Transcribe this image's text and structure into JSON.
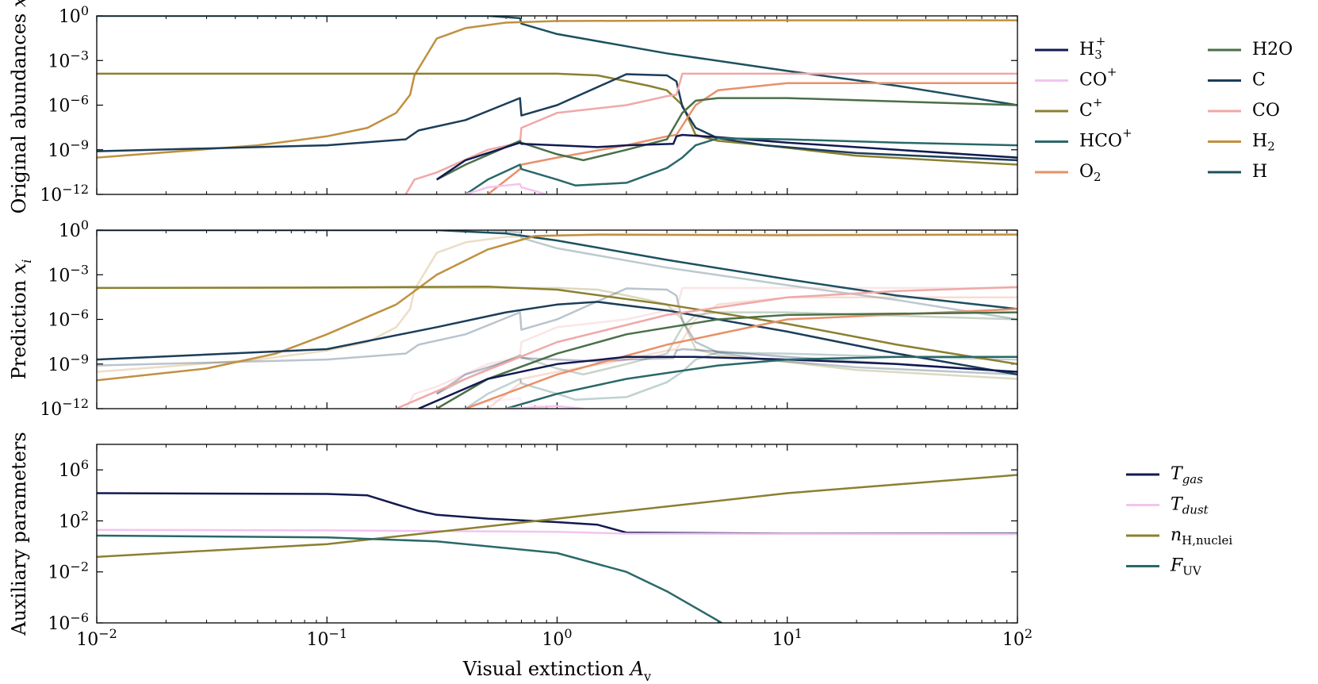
{
  "figure": {
    "xlabel": "Visual extinction A",
    "xlabel_sub": "v",
    "xticks": [
      {
        "value": 0.01,
        "base": "10",
        "exp": "−2"
      },
      {
        "value": 0.1,
        "base": "10",
        "exp": "−1"
      },
      {
        "value": 1,
        "base": "10",
        "exp": "0"
      },
      {
        "value": 10,
        "base": "10",
        "exp": "1"
      },
      {
        "value": 100,
        "base": "10",
        "exp": "2"
      }
    ]
  },
  "chart_data": [
    {
      "type": "line",
      "id": "original",
      "ylabel": "Original abundances x",
      "xscale": "log",
      "yscale": "log",
      "xlim": [
        0.01,
        100
      ],
      "ylim": [
        1e-12,
        1
      ],
      "yticks": [
        {
          "value": 1,
          "base": "10",
          "exp": "0"
        },
        {
          "value": 0.001,
          "base": "10",
          "exp": "−3"
        },
        {
          "value": 1e-06,
          "base": "10",
          "exp": "−6"
        },
        {
          "value": 1e-09,
          "base": "10",
          "exp": "−9"
        },
        {
          "value": 1e-12,
          "base": "10",
          "exp": "−12"
        }
      ],
      "legend": [
        "H3+",
        "CO+",
        "C+",
        "HCO+",
        "O2",
        "H2O",
        "C",
        "CO",
        "H2",
        "H"
      ],
      "series": [
        {
          "name": "H",
          "color": "#1d5060",
          "x": [
            0.01,
            0.1,
            0.5,
            0.69,
            0.7,
            1,
            3,
            10,
            30,
            100
          ],
          "y": [
            1,
            1,
            1,
            0.7,
            0.3,
            0.06,
            0.003,
            0.0002,
            2e-05,
            1e-06
          ]
        },
        {
          "name": "H2",
          "color": "#c09040",
          "x": [
            0.01,
            0.05,
            0.1,
            0.15,
            0.2,
            0.23,
            0.24,
            0.3,
            0.4,
            0.6,
            1,
            10,
            100
          ],
          "y": [
            3e-10,
            2e-09,
            8e-09,
            3e-08,
            3e-07,
            5e-06,
            0.0001,
            0.03,
            0.15,
            0.35,
            0.45,
            0.5,
            0.5
          ]
        },
        {
          "name": "C+",
          "color": "#8b8030",
          "x": [
            0.01,
            0.1,
            1,
            1.5,
            2.5,
            3,
            3.5,
            4,
            5,
            8,
            20,
            100
          ],
          "y": [
            0.00013,
            0.00013,
            0.00013,
            0.0001,
            2e-05,
            1e-05,
            1e-06,
            1e-08,
            4e-09,
            2e-09,
            4e-10,
            1e-10
          ]
        },
        {
          "name": "C",
          "color": "#1b3d5a",
          "x": [
            0.01,
            0.1,
            0.22,
            0.25,
            0.4,
            0.69,
            0.7,
            1,
            2,
            3,
            3.3,
            3.5,
            4,
            5,
            8,
            20,
            100
          ],
          "y": [
            8e-10,
            2e-09,
            5e-09,
            2e-08,
            1e-07,
            3e-06,
            2e-07,
            1e-06,
            0.00012,
            0.0001,
            4e-05,
            8e-07,
            3e-08,
            6e-09,
            2e-09,
            6e-10,
            2e-10
          ]
        },
        {
          "name": "CO",
          "color": "#f0a8a8",
          "x": [
            0.22,
            0.24,
            0.3,
            0.5,
            0.69,
            0.7,
            1,
            2,
            3,
            3.3,
            3.5,
            10,
            100
          ],
          "y": [
            1e-12,
            1e-11,
            3e-11,
            1e-09,
            3e-09,
            3e-08,
            3e-07,
            1e-06,
            4e-06,
            5e-06,
            0.00013,
            0.00013,
            0.00013
          ]
        },
        {
          "name": "O2",
          "color": "#e8906a",
          "x": [
            0.5,
            0.69,
            0.7,
            1,
            2,
            3,
            3.3,
            4,
            5,
            10,
            100
          ],
          "y": [
            1e-12,
            5e-11,
            1e-10,
            3e-10,
            2e-09,
            8e-09,
            1e-08,
            1e-06,
            1e-05,
            3e-05,
            3e-05
          ]
        },
        {
          "name": "H2O",
          "color": "#4a7048",
          "x": [
            0.3,
            0.4,
            0.69,
            0.7,
            1,
            1.3,
            2,
            3,
            3.5,
            4,
            5,
            10,
            100
          ],
          "y": [
            1e-11,
            1e-10,
            4e-09,
            3e-09,
            5e-10,
            2e-10,
            1e-09,
            5e-09,
            3e-07,
            2e-06,
            3e-06,
            3e-06,
            1e-06
          ]
        },
        {
          "name": "H3+",
          "color": "#121a50",
          "x": [
            0.3,
            0.4,
            0.69,
            0.7,
            1,
            1.5,
            2,
            3.2,
            3.3,
            3.5,
            5,
            10,
            30,
            100
          ],
          "y": [
            1e-11,
            2e-10,
            3e-09,
            2.5e-09,
            2e-09,
            1.5e-09,
            2e-09,
            2.5e-09,
            8e-09,
            1e-08,
            7e-09,
            3e-09,
            1e-09,
            3e-10
          ]
        },
        {
          "name": "HCO+",
          "color": "#2a6868",
          "x": [
            0.4,
            0.5,
            0.69,
            0.7,
            1,
            1.2,
            2,
            3,
            3.5,
            4,
            5,
            10,
            30,
            100
          ],
          "y": [
            1e-12,
            1e-11,
            1e-10,
            5e-11,
            1e-11,
            4e-12,
            6e-12,
            6e-11,
            3e-10,
            2e-09,
            6e-09,
            5e-09,
            3e-09,
            2e-09
          ]
        },
        {
          "name": "CO+",
          "color": "#f3c4f0",
          "x": [
            0.4,
            0.5,
            0.69,
            0.7,
            0.9
          ],
          "y": [
            1e-12,
            3e-12,
            5e-12,
            3e-12,
            1e-12
          ]
        }
      ]
    },
    {
      "type": "line",
      "id": "prediction",
      "ylabel": "Prediction x",
      "ylabel_sub": "i",
      "xscale": "log",
      "yscale": "log",
      "xlim": [
        0.01,
        100
      ],
      "ylim": [
        1e-12,
        1
      ],
      "yticks": [
        {
          "value": 1,
          "base": "10",
          "exp": "0"
        },
        {
          "value": 0.001,
          "base": "10",
          "exp": "−3"
        },
        {
          "value": 1e-06,
          "base": "10",
          "exp": "−6"
        },
        {
          "value": 1e-09,
          "base": "10",
          "exp": "−9"
        },
        {
          "value": 1e-12,
          "base": "10",
          "exp": "−12"
        }
      ],
      "series": [
        {
          "name": "H",
          "color": "#1d5060",
          "x": [
            0.01,
            0.1,
            0.3,
            0.6,
            1,
            3,
            10,
            30,
            100
          ],
          "y": [
            1,
            1,
            1,
            0.6,
            0.2,
            0.01,
            0.0005,
            4e-05,
            5e-06
          ]
        },
        {
          "name": "H2",
          "color": "#c09040",
          "x": [
            0.01,
            0.03,
            0.06,
            0.1,
            0.2,
            0.3,
            0.5,
            0.8,
            1.5,
            10,
            100
          ],
          "y": [
            8e-11,
            5e-10,
            5e-09,
            1e-07,
            1e-05,
            0.001,
            0.05,
            0.4,
            0.5,
            0.45,
            0.5
          ]
        },
        {
          "name": "C+",
          "color": "#8b8030",
          "x": [
            0.01,
            0.1,
            0.5,
            1,
            3,
            10,
            30,
            100
          ],
          "y": [
            0.00013,
            0.00014,
            0.00016,
            0.0001,
            1e-05,
            5e-07,
            2e-08,
            1e-09
          ]
        },
        {
          "name": "C",
          "color": "#1b3d5a",
          "x": [
            0.01,
            0.1,
            0.3,
            0.6,
            1,
            1.5,
            3,
            10,
            30,
            100
          ],
          "y": [
            2e-09,
            1e-08,
            3e-07,
            3e-06,
            1e-05,
            1.5e-05,
            4e-06,
            1.5e-07,
            5e-09,
            2e-10
          ]
        },
        {
          "name": "CO",
          "color": "#f0a8a8",
          "x": [
            0.2,
            0.4,
            1,
            3,
            10,
            30,
            100
          ],
          "y": [
            1e-12,
            1e-10,
            3e-08,
            2e-06,
            3e-05,
            8e-05,
            0.00015
          ]
        },
        {
          "name": "O2",
          "color": "#e8906a",
          "x": [
            0.4,
            1,
            3,
            10,
            100
          ],
          "y": [
            1e-12,
            2e-10,
            2e-08,
            1e-06,
            5e-06
          ]
        },
        {
          "name": "H2O",
          "color": "#4a7048",
          "x": [
            0.3,
            0.5,
            1,
            2,
            5,
            10,
            100
          ],
          "y": [
            1e-12,
            1e-10,
            5e-09,
            1e-07,
            1e-06,
            2e-06,
            3e-06
          ]
        },
        {
          "name": "H3+",
          "color": "#121a50",
          "x": [
            0.25,
            0.5,
            1,
            2,
            4,
            10,
            30,
            100
          ],
          "y": [
            1e-12,
            1e-10,
            1e-09,
            3e-09,
            3e-09,
            2e-09,
            1e-09,
            3e-10
          ]
        },
        {
          "name": "HCO+",
          "color": "#2a6868",
          "x": [
            0.6,
            1,
            2,
            5,
            10,
            30,
            100
          ],
          "y": [
            1e-12,
            1e-11,
            1e-10,
            8e-10,
            2e-09,
            3e-09,
            3e-09
          ]
        },
        {
          "name": "CO+",
          "color": "#f3c4f0",
          "x": [
            0.6,
            1,
            1.3
          ],
          "y": [
            1e-12,
            1.5e-12,
            1e-12
          ]
        }
      ]
    },
    {
      "type": "line",
      "id": "auxiliary",
      "ylabel": "Auxiliary parameters",
      "xscale": "log",
      "yscale": "log",
      "xlim": [
        0.01,
        100
      ],
      "ylim": [
        1e-06,
        100000000.0
      ],
      "yticks": [
        {
          "value": 1000000,
          "base": "10",
          "exp": "6"
        },
        {
          "value": 100,
          "base": "10",
          "exp": "2"
        },
        {
          "value": 0.01,
          "base": "10",
          "exp": "−2"
        },
        {
          "value": 1e-06,
          "base": "10",
          "exp": "−6"
        }
      ],
      "legend": [
        "T_gas",
        "T_dust",
        "n_H,nuclei",
        "F_UV"
      ],
      "series": [
        {
          "name": "T_gas",
          "color": "#121a50",
          "x": [
            0.01,
            0.1,
            0.15,
            0.2,
            0.25,
            0.3,
            0.5,
            1,
            1.5,
            2,
            10,
            100
          ],
          "y": [
            15000,
            13000,
            10000,
            2000,
            600,
            300,
            150,
            80,
            50,
            12,
            10,
            10
          ]
        },
        {
          "name": "T_dust",
          "color": "#f3c4f0",
          "x": [
            0.01,
            0.1,
            1,
            2,
            100
          ],
          "y": [
            20,
            18,
            14,
            10,
            9
          ]
        },
        {
          "name": "n_H,nuclei",
          "color": "#8b8030",
          "x": [
            0.01,
            0.1,
            1,
            10,
            100
          ],
          "y": [
            0.15,
            1.5,
            150,
            15000,
            400000
          ]
        },
        {
          "name": "F_UV",
          "color": "#2a6868",
          "x": [
            0.01,
            0.1,
            0.3,
            1,
            2,
            3,
            5,
            5.5
          ],
          "y": [
            7,
            5,
            2.5,
            0.3,
            0.01,
            0.0003,
            1.5e-06,
            5e-07
          ]
        }
      ]
    }
  ]
}
